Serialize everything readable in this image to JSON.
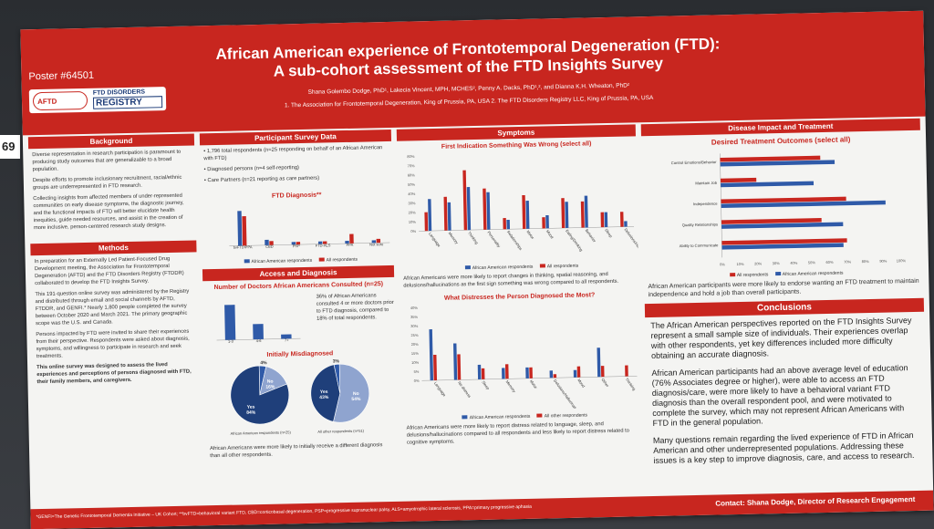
{
  "edge_label": "69",
  "header": {
    "poster_number": "Poster #64501",
    "logo_aftd": "AFTD",
    "logo_registry_top": "FTD DISORDERS",
    "logo_registry_bottom": "REGISTRY",
    "title_line1": "African American experience of Frontotemporal Degeneration (FTD):",
    "title_line2": "A sub-cohort assessment of the FTD Insights Survey",
    "authors": "Shana Golembo Dodge, PhD¹, Lakecia Vincent, MPH, MCHES², Penny A. Dacks, PhD¹,², and Dianna K.H. Wheaton, PhD²",
    "affiliations": "1. The Association for Frontotemporal Degeneration, King of Prussia, PA, USA 2. The FTD Disorders Registry LLC, King of Prussia, PA, USA"
  },
  "background": {
    "heading": "Background",
    "p1": "Diverse representation in research participation is paramount to producing study outcomes that are generalizable to a broad population.",
    "p2": "Despite efforts to promote inclusionary recruitment, racial/ethnic groups are underrepresented in FTD research.",
    "p3": "Collecting insights from affected members of under-represented communities on early disease symptoms, the diagnostic journey, and the functional impacts of FTD will better elucidate health inequities, guide needed resources, and assist in the creation of more inclusive, person-centered research study designs."
  },
  "methods": {
    "heading": "Methods",
    "p1": "In preparation for an Externally Led Patient-Focused Drug Development meeting, the Association for Frontotemporal Degeneration (AFTD) and the FTD Disorders Registry (FTDDR) collaborated to develop the FTD Insights Survey.",
    "p2": "This 191-question online survey was administered by the Registry and distributed through email and social channels by AFTD, FTDDR, and GENFI.* Nearly 1,800 people completed the survey between October 2020 and March 2021. The primary geographic scope was the U.S. and Canada.",
    "p3": "Persons impacted by FTD were invited to share their experiences from their perspective. Respondents were asked about diagnosis, symptoms, and willingness to participate in research and seek treatments.",
    "p4": "This online survey was designed to assess the lived experiences and perceptions of persons diagnosed with FTD, their family members, and caregivers."
  },
  "participant": {
    "heading": "Participant Survey Data",
    "b1": "• 1,796 total respondents (n=25 responding on behalf of an African American with FTD)",
    "b2": "• Diagnosed persons (n=4 self-reporting)",
    "b3": "• Care Partners (n=21 reporting as care partners)"
  },
  "legend": {
    "aa": "African American respondents",
    "all": "All respondents",
    "all_other": "All other respondents"
  },
  "access": {
    "heading": "Access and Diagnosis",
    "doctors_note": "36% of African Americans consulted 4 or more doctors prior to FTD diagnosis, compared to 18% of total respondents.",
    "misdiagnosed_title": "Initially Misdiagnosed",
    "caption": "African Americans were more likely to initially receive a different diagnosis than all other respondents."
  },
  "symptoms": {
    "heading": "Symptoms",
    "caption1": "African Americans were more likely to report changes in thinking, spatial reasoning, and delusions/hallucinations as the first sign something was wrong compared to all respondents.",
    "caption2": "African Americans were more likely to report distress related to language, sleep, and delusions/hallucinations compared to all respondents and less likely to report distress related to cognitive symptoms."
  },
  "impact": {
    "heading": "Disease Impact and Treatment",
    "caption": "African American participants were more likely to endorse wanting an FTD treatment to maintain independence and hold a job than overall participants."
  },
  "conclusions": {
    "heading": "Conclusions",
    "p1": "The African American perspectives reported on the FTD Insights Survey represent a small sample size of individuals. Their experiences overlap with other respondents, yet key differences included more difficulty obtaining an accurate diagnosis.",
    "p2": "African American participants had an above average level of education (76% Associates degree or higher), were able to access an FTD diagnosis/care, were more likely to have a behavioral variant FTD diagnosis than the overall respondent pool, and were motivated to complete the survey, which may not represent African Americans with FTD in the general population.",
    "p3": "Many questions remain regarding the lived experience of FTD in African American and other underrepresented populations. Addressing these issues is a key step to improve diagnosis, care, and access to research."
  },
  "footer": {
    "abbreviations": "*GENFI=The Genetic Frontotemporal Dementia Initiative – UK Cohort; **bvFTD=behavioral variant FTD, CBD=corticobasal degeneration, PSP=progressive supranuclear palsy, ALS=amyotrophic lateral sclerosis, PPA=primary progressive aphasia",
    "contact": "Contact: Shana Dodge, Director of Research Engagement"
  },
  "colors": {
    "aa": "#2f5aa8",
    "all": "#c8261f",
    "accent": "#c8261f"
  },
  "chart_data": [
    {
      "type": "bar",
      "title": "FTD Diagnosis**",
      "categories": [
        "bvFTD/PPA",
        "CBD",
        "PSP",
        "FTD-ALS",
        "PPA",
        "Not sure"
      ],
      "series": [
        {
          "name": "African American respondents",
          "values": [
            52,
            8,
            4,
            4,
            4,
            4
          ]
        },
        {
          "name": "All respondents",
          "values": [
            44,
            6,
            4,
            4,
            14,
            6
          ]
        }
      ],
      "ylim": [
        0,
        60
      ]
    },
    {
      "type": "bar",
      "title": "Number of Doctors African Americans Consulted (n=25)",
      "categories": [
        "1-3",
        "4-6",
        "7+"
      ],
      "values": [
        16,
        7,
        2
      ],
      "ylim": [
        0,
        20
      ]
    },
    {
      "type": "bar",
      "title": "First Indication Something Was Wrong (select all)",
      "categories": [
        "Language",
        "Memory",
        "Thinking",
        "Personality",
        "Relationships",
        "Motor",
        "Mood",
        "Eating/Drinking",
        "Behavior",
        "Sleep",
        "Delusions/Hallucinations"
      ],
      "series": [
        {
          "name": "African American respondents",
          "values": [
            20,
            36,
            64,
            44,
            12,
            36,
            12,
            32,
            28,
            16,
            16
          ]
        },
        {
          "name": "All respondents",
          "values": [
            34,
            30,
            46,
            40,
            10,
            30,
            14,
            28,
            34,
            16,
            6
          ]
        }
      ],
      "ylim": [
        0,
        80
      ]
    },
    {
      "type": "bar",
      "title": "What Distresses the Person Diagnosed the Most?",
      "categories": [
        "Language",
        "No distress",
        "Sleep",
        "Memory",
        "Motor",
        "Delusions/Hallucinations",
        "Mood",
        "Other",
        "Thinking"
      ],
      "series": [
        {
          "name": "African American respondents",
          "values": [
            28,
            20,
            8,
            6,
            6,
            4,
            4,
            16,
            0
          ]
        },
        {
          "name": "All other respondents",
          "values": [
            14,
            14,
            6,
            8,
            6,
            2,
            6,
            6,
            6
          ]
        }
      ],
      "ylim": [
        0,
        40
      ]
    },
    {
      "type": "bar",
      "title": "Desired Treatment Outcomes (select all)",
      "categories": [
        "Control Emotions/Behavior",
        "Maintain Job",
        "Independence",
        "Quality Relationships",
        "Ability to Communicate"
      ],
      "series": [
        {
          "name": "All respondents",
          "values": [
            56,
            20,
            70,
            56,
            70
          ]
        },
        {
          "name": "African American respondents",
          "values": [
            64,
            52,
            92,
            68,
            68
          ]
        }
      ],
      "xlim": [
        0,
        100
      ]
    },
    {
      "type": "pie",
      "title": "Initially Misdiagnosed",
      "pies": [
        {
          "name": "African American respondents (n=25)",
          "labels": [
            "Don't know",
            "No",
            "Yes"
          ],
          "values": [
            4,
            16,
            84
          ]
        },
        {
          "name": "All other respondents (n=51)",
          "labels": [
            "No",
            "Yes",
            "Don't Know"
          ],
          "values": [
            54,
            43,
            3
          ]
        }
      ]
    }
  ]
}
